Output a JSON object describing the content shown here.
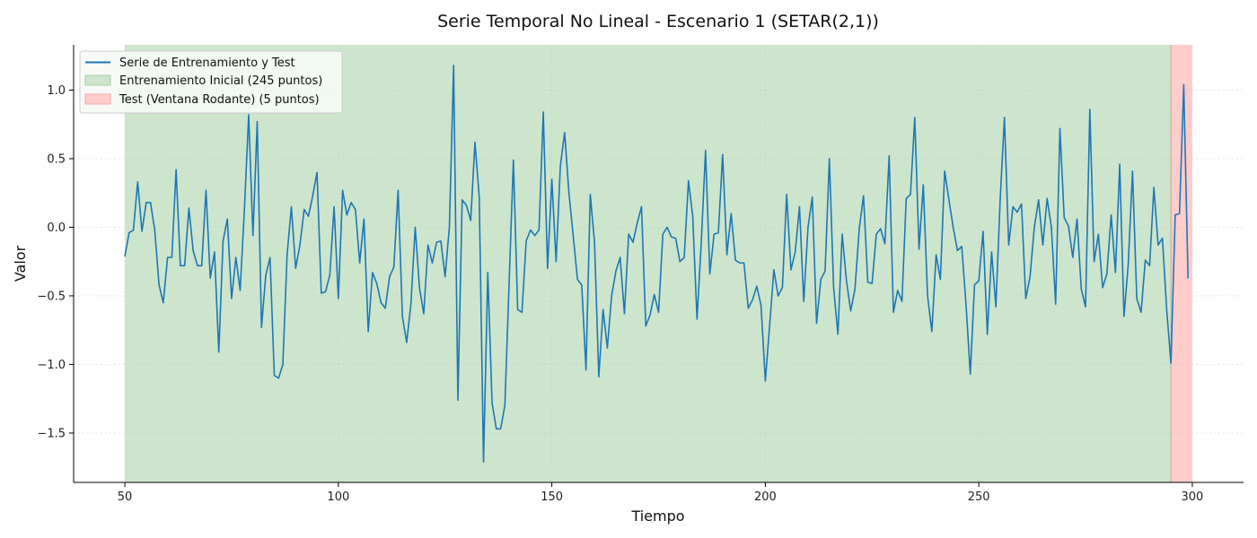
{
  "chart_data": {
    "type": "line",
    "title": "Serie Temporal No Lineal - Escenario 1 (SETAR(2,1))",
    "xlabel": "Tiempo",
    "ylabel": "Valor",
    "xlim": [
      38,
      312
    ],
    "ylim": [
      -1.86,
      1.33
    ],
    "xticks": [
      50,
      100,
      150,
      200,
      250,
      300
    ],
    "yticks": [
      -1.5,
      -1.0,
      -0.5,
      0.0,
      0.5,
      1.0
    ],
    "xtick_labels": [
      "50",
      "100",
      "150",
      "200",
      "250",
      "300"
    ],
    "ytick_labels": [
      "−1.5",
      "−1.0",
      "−0.5",
      "0.0",
      "0.5",
      "1.0"
    ],
    "grid": true,
    "legend_position": "top-left",
    "colors": {
      "line": "#1f77b4",
      "train_span": "#cde5cd",
      "test_span": "#ffcccc"
    },
    "regions": [
      {
        "name": "Entrenamiento Inicial (245 puntos)",
        "x_start": 50,
        "x_end": 295,
        "color": "#cde5cd"
      },
      {
        "name": "Test (Ventana Rodante) (5 puntos)",
        "x_start": 295,
        "x_end": 300,
        "color": "#ffcccc"
      }
    ],
    "series": [
      {
        "name": "Serie de Entrenamiento y Test",
        "x_start": 50,
        "x_step": 1,
        "values": [
          -0.21,
          -0.04,
          -0.02,
          0.33,
          -0.03,
          0.18,
          0.18,
          -0.02,
          -0.42,
          -0.55,
          -0.22,
          -0.22,
          0.42,
          -0.28,
          -0.28,
          0.14,
          -0.17,
          -0.28,
          -0.28,
          0.27,
          -0.37,
          -0.18,
          -0.91,
          -0.1,
          0.06,
          -0.52,
          -0.22,
          -0.46,
          0.13,
          0.82,
          -0.06,
          0.77,
          -0.73,
          -0.35,
          -0.22,
          -1.08,
          -1.1,
          -1.0,
          -0.2,
          0.15,
          -0.3,
          -0.13,
          0.13,
          0.08,
          0.23,
          0.4,
          -0.48,
          -0.47,
          -0.35,
          0.15,
          -0.52,
          0.27,
          0.09,
          0.18,
          0.13,
          -0.26,
          0.06,
          -0.76,
          -0.33,
          -0.41,
          -0.55,
          -0.59,
          -0.36,
          -0.29,
          0.27,
          -0.65,
          -0.84,
          -0.56,
          0.0,
          -0.44,
          -0.63,
          -0.13,
          -0.26,
          -0.11,
          -0.1,
          -0.36,
          0.0,
          1.18,
          -1.26,
          0.2,
          0.16,
          0.05,
          0.62,
          0.22,
          -1.71,
          -0.33,
          -1.28,
          -1.47,
          -1.47,
          -1.3,
          -0.4,
          0.49,
          -0.6,
          -0.62,
          -0.1,
          -0.02,
          -0.06,
          -0.02,
          0.84,
          -0.3,
          0.35,
          -0.25,
          0.45,
          0.69,
          0.25,
          -0.06,
          -0.38,
          -0.42,
          -1.04,
          0.24,
          -0.11,
          -1.09,
          -0.6,
          -0.88,
          -0.5,
          -0.32,
          -0.22,
          -0.63,
          -0.05,
          -0.11,
          0.03,
          0.15,
          -0.72,
          -0.64,
          -0.49,
          -0.62,
          -0.05,
          0.0,
          -0.07,
          -0.08,
          -0.25,
          -0.22,
          0.34,
          0.08,
          -0.67,
          -0.11,
          0.56,
          -0.34,
          -0.05,
          -0.04,
          0.53,
          -0.2,
          0.1,
          -0.24,
          -0.26,
          -0.26,
          -0.59,
          -0.53,
          -0.43,
          -0.57,
          -1.12,
          -0.72,
          -0.31,
          -0.5,
          -0.44,
          0.24,
          -0.31,
          -0.18,
          0.15,
          -0.54,
          0.0,
          0.22,
          -0.7,
          -0.38,
          -0.32,
          0.5,
          -0.44,
          -0.78,
          -0.05,
          -0.39,
          -0.61,
          -0.45,
          -0.01,
          0.23,
          -0.4,
          -0.41,
          -0.05,
          -0.01,
          -0.12,
          0.52,
          -0.62,
          -0.46,
          -0.54,
          0.21,
          0.24,
          0.8,
          -0.16,
          0.31,
          -0.5,
          -0.76,
          -0.2,
          -0.38,
          0.41,
          0.2,
          0.0,
          -0.17,
          -0.14,
          -0.56,
          -1.07,
          -0.42,
          -0.39,
          -0.03,
          -0.78,
          -0.18,
          -0.58,
          0.2,
          0.8,
          -0.13,
          0.15,
          0.11,
          0.17,
          -0.52,
          -0.36,
          0.0,
          0.2,
          -0.13,
          0.21,
          0.0,
          -0.56,
          0.72,
          0.07,
          0.01,
          -0.22,
          0.06,
          -0.45,
          -0.58,
          0.86,
          -0.25,
          -0.05,
          -0.44,
          -0.34,
          0.09,
          -0.33,
          0.46,
          -0.65,
          -0.27,
          0.41,
          -0.52,
          -0.62,
          -0.24,
          -0.28,
          0.29,
          -0.13,
          -0.08,
          -0.6,
          -0.99,
          0.09,
          0.1,
          1.04,
          -0.37
        ]
      }
    ]
  }
}
